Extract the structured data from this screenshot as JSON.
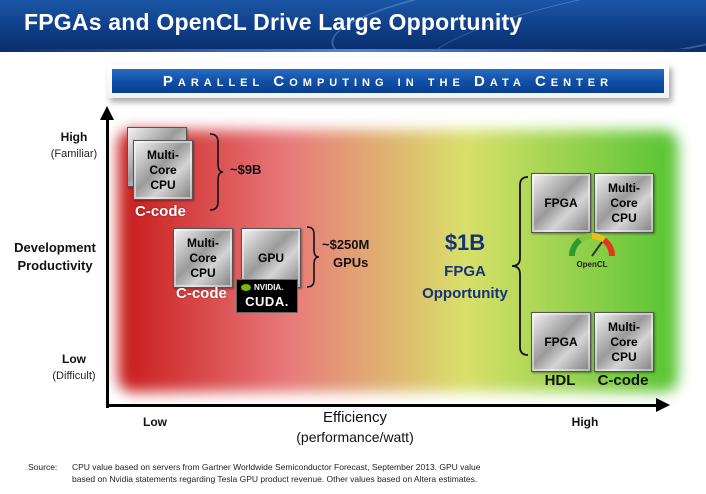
{
  "title": "FPGAs and OpenCL Drive Large Opportunity",
  "subtitle": "Parallel Computing in the Data Center",
  "y_axis": {
    "label_line1": "Development",
    "label_line2": "Productivity",
    "high": "High",
    "high_note": "(Familiar)",
    "low": "Low",
    "low_note": "(Difficult)"
  },
  "x_axis": {
    "label": "Efficiency",
    "label_note": "(performance/watt)",
    "low": "Low",
    "high": "High"
  },
  "groups": {
    "cpu": {
      "chip": "Multi-Core\nCPU",
      "lang": "C-code",
      "value": "~$9B"
    },
    "gpu": {
      "chip_cpu": "Multi-Core\nCPU",
      "chip_gpu": "GPU",
      "lang": "C-code",
      "value_line1": "~$250M",
      "value_line2": "GPUs",
      "logo_brand": "NVIDIA.",
      "logo_text": "CUDA."
    },
    "fpga": {
      "value": "$1B",
      "line2": "FPGA",
      "line3": "Opportunity",
      "top_chip_fpga": "FPGA",
      "top_chip_cpu": "Multi-Core\nCPU",
      "opencl_label": "OpenCL",
      "bottom_chip_fpga": "FPGA",
      "bottom_chip_cpu": "Multi-Core\nCPU",
      "bottom_lang_left": "HDL",
      "bottom_lang_right": "C-code"
    }
  },
  "source": {
    "label": "Source:",
    "line1": "CPU value based on servers from Gartner Worldwide Semiconductor Forecast, September 2013.  GPU value",
    "line2": "based on Nvidia statements regarding Tesla GPU product revenue.  Other values based on Altera estimates."
  },
  "colors": {
    "title_bar": "#0f3d87",
    "banner": "#1050a8",
    "opportunity_text": "#16337a",
    "field_left": "#c81a1a",
    "field_right": "#55c432"
  }
}
